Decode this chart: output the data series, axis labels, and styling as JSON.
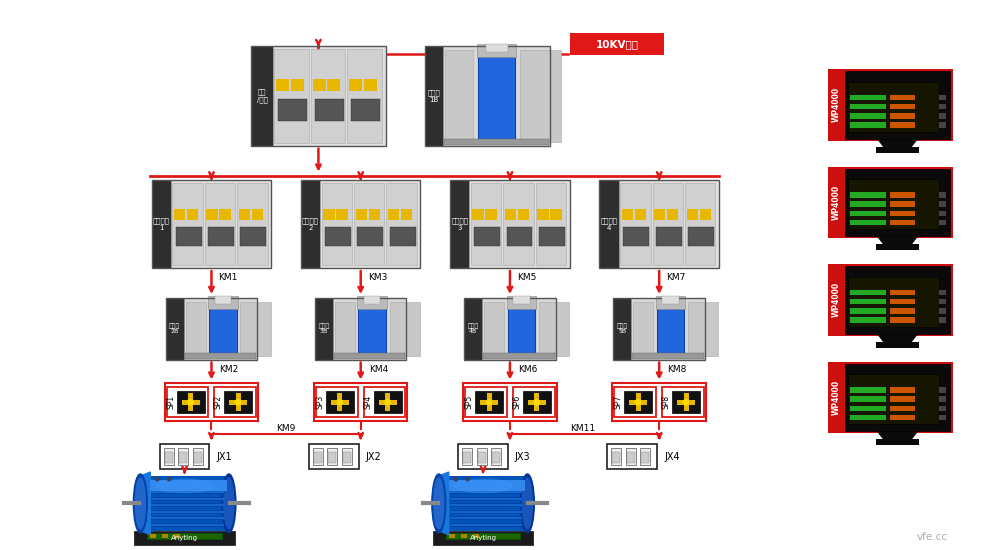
{
  "bg_color": "#ffffff",
  "red": "#e01818",
  "dark_bg": "#2e2e2e",
  "light_gray": "#e0e0e0",
  "mid_gray": "#c8c8c8",
  "dark_gray": "#888888",
  "blue_tr": "#2266dd",
  "blue_motor": "#1a6acc",
  "green_base": "#2a5a2a",
  "yellow_ind": "#e8b800",
  "wp_red": "#cc1010",
  "wp_screen_bg": "#1a1a00",
  "wp_green": "#22aa22",
  "wp_orange": "#cc5500",
  "vfe_color": "#aaaaaa",
  "components": {
    "grid_label": "10KV电网",
    "rectifier_label": "整流\n/回馈",
    "transformer1B_label": "变压器\n1B",
    "power_labels": [
      "数字电源\n1",
      "数字电源\n2",
      "数字电源\n3",
      "数字电源\n4"
    ],
    "km_top_labels": [
      "KM1",
      "KM3",
      "KM5",
      "KM7"
    ],
    "transformer_labels": [
      "变压器\n2B",
      "变压器\n3B",
      "变压器\n4B",
      "变压器\n5B"
    ],
    "km_mid_labels": [
      "KM2",
      "KM4",
      "KM6",
      "KM8"
    ],
    "sp_pairs": [
      [
        "SP1",
        "SP2"
      ],
      [
        "SP3",
        "SP4"
      ],
      [
        "SP5",
        "SP6"
      ],
      [
        "SP7",
        "SP8"
      ]
    ],
    "km_bot_labels": [
      "KM9",
      "KM11"
    ],
    "jx_labels": [
      "JX1",
      "JX2",
      "JX3",
      "JX4"
    ],
    "motor_label": "Anyting",
    "wp_label": "WP4000"
  }
}
